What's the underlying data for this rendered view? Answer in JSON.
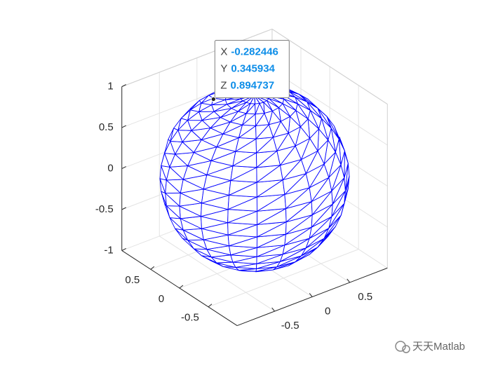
{
  "chart_data": {
    "type": "mesh3d",
    "surface": "sphere",
    "color": "#0000ff",
    "xlim": [
      -1,
      1
    ],
    "ylim": [
      -1,
      1
    ],
    "zlim": [
      -1,
      1
    ],
    "xticks": [
      -0.5,
      0,
      0.5
    ],
    "yticks": [
      -0.5,
      0,
      0.5
    ],
    "zticks": [
      -1,
      -0.5,
      0,
      0.5,
      1
    ],
    "grid": true,
    "datatip": {
      "labels": [
        "X",
        "Y",
        "Z"
      ],
      "values": [
        -0.282446,
        0.345934,
        0.894737
      ]
    }
  },
  "watermark": "天天Matlab"
}
